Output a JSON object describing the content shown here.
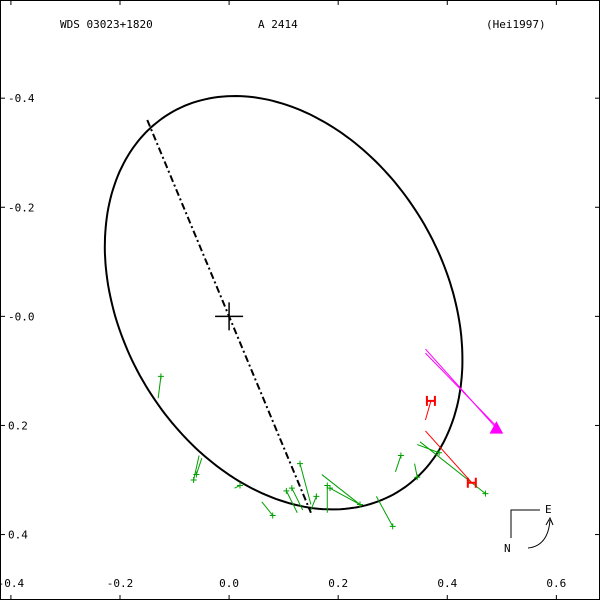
{
  "header": {
    "wds_id": "WDS 03023+1820",
    "discoverer": "A  2414",
    "reference": "(Hei1997)"
  },
  "orientation": {
    "east_label": "E",
    "north_label": "N"
  },
  "chart_data": {
    "type": "scatter",
    "title": "",
    "xlabel": "",
    "ylabel": "",
    "xlim": [
      -0.42,
      0.68
    ],
    "ylim": [
      -0.52,
      0.58
    ],
    "x_ticks": [
      -0.4,
      -0.2,
      0.0,
      0.2,
      0.4,
      0.6
    ],
    "x_tick_labels": [
      "-0.4",
      "-0.2",
      "0.0",
      "0.2",
      "0.4",
      "0.6"
    ],
    "y_ticks": [
      0.4,
      0.2,
      0.0,
      -0.2,
      -0.4
    ],
    "y_tick_labels": [
      "-0.4",
      "-0.2",
      "-0.0",
      "0.2",
      "0.4"
    ],
    "grid": false,
    "primary_star": [
      0.0,
      0.0
    ],
    "orbit_ellipse": {
      "center": [
        0.1,
        0.025
      ],
      "semi_major": 0.405,
      "semi_minor": 0.295,
      "angle_deg": 121,
      "color": "#000000"
    },
    "line_of_nodes": {
      "from": [
        -0.15,
        0.36
      ],
      "to": [
        0.15,
        -0.36
      ],
      "color": "#000000"
    },
    "observations": [
      {
        "x": -0.125,
        "y": -0.11,
        "ox": -0.13,
        "oy": -0.15
      },
      {
        "x": -0.065,
        "y": -0.3,
        "ox": -0.055,
        "oy": -0.255
      },
      {
        "x": -0.06,
        "y": -0.29,
        "ox": -0.05,
        "oy": -0.26
      },
      {
        "x": 0.02,
        "y": -0.31,
        "ox": 0.01,
        "oy": -0.315
      },
      {
        "x": 0.08,
        "y": -0.365,
        "ox": 0.06,
        "oy": -0.34
      },
      {
        "x": 0.105,
        "y": -0.32,
        "ox": 0.125,
        "oy": -0.36
      },
      {
        "x": 0.115,
        "y": -0.315,
        "ox": 0.135,
        "oy": -0.355
      },
      {
        "x": 0.13,
        "y": -0.27,
        "ox": 0.15,
        "oy": -0.345
      },
      {
        "x": 0.16,
        "y": -0.33,
        "ox": 0.15,
        "oy": -0.355
      },
      {
        "x": 0.185,
        "y": -0.315,
        "ox": 0.24,
        "oy": -0.345
      },
      {
        "x": 0.18,
        "y": -0.31,
        "ox": 0.18,
        "oy": -0.36
      },
      {
        "x": 0.24,
        "y": -0.345,
        "ox": 0.17,
        "oy": -0.29
      },
      {
        "x": 0.3,
        "y": -0.385,
        "ox": 0.27,
        "oy": -0.33
      },
      {
        "x": 0.315,
        "y": -0.255,
        "ox": 0.305,
        "oy": -0.285
      },
      {
        "x": 0.345,
        "y": -0.295,
        "ox": 0.34,
        "oy": -0.27
      },
      {
        "x": 0.385,
        "y": -0.25,
        "ox": 0.345,
        "oy": -0.235
      },
      {
        "x": 0.47,
        "y": -0.325,
        "ox": 0.35,
        "oy": -0.23
      }
    ],
    "speckle_points": [
      {
        "x": 0.37,
        "y": -0.155,
        "ox": 0.36,
        "oy": -0.19
      },
      {
        "x": 0.445,
        "y": -0.305,
        "ox": 0.36,
        "oy": -0.21
      }
    ],
    "current_position": {
      "x": 0.49,
      "y": -0.205,
      "ox": 0.36,
      "oy": -0.06
    },
    "colors": {
      "orbit": "#000000",
      "observation": "#00a000",
      "speckle": "#ff0000",
      "current": "#ff00ff"
    }
  }
}
